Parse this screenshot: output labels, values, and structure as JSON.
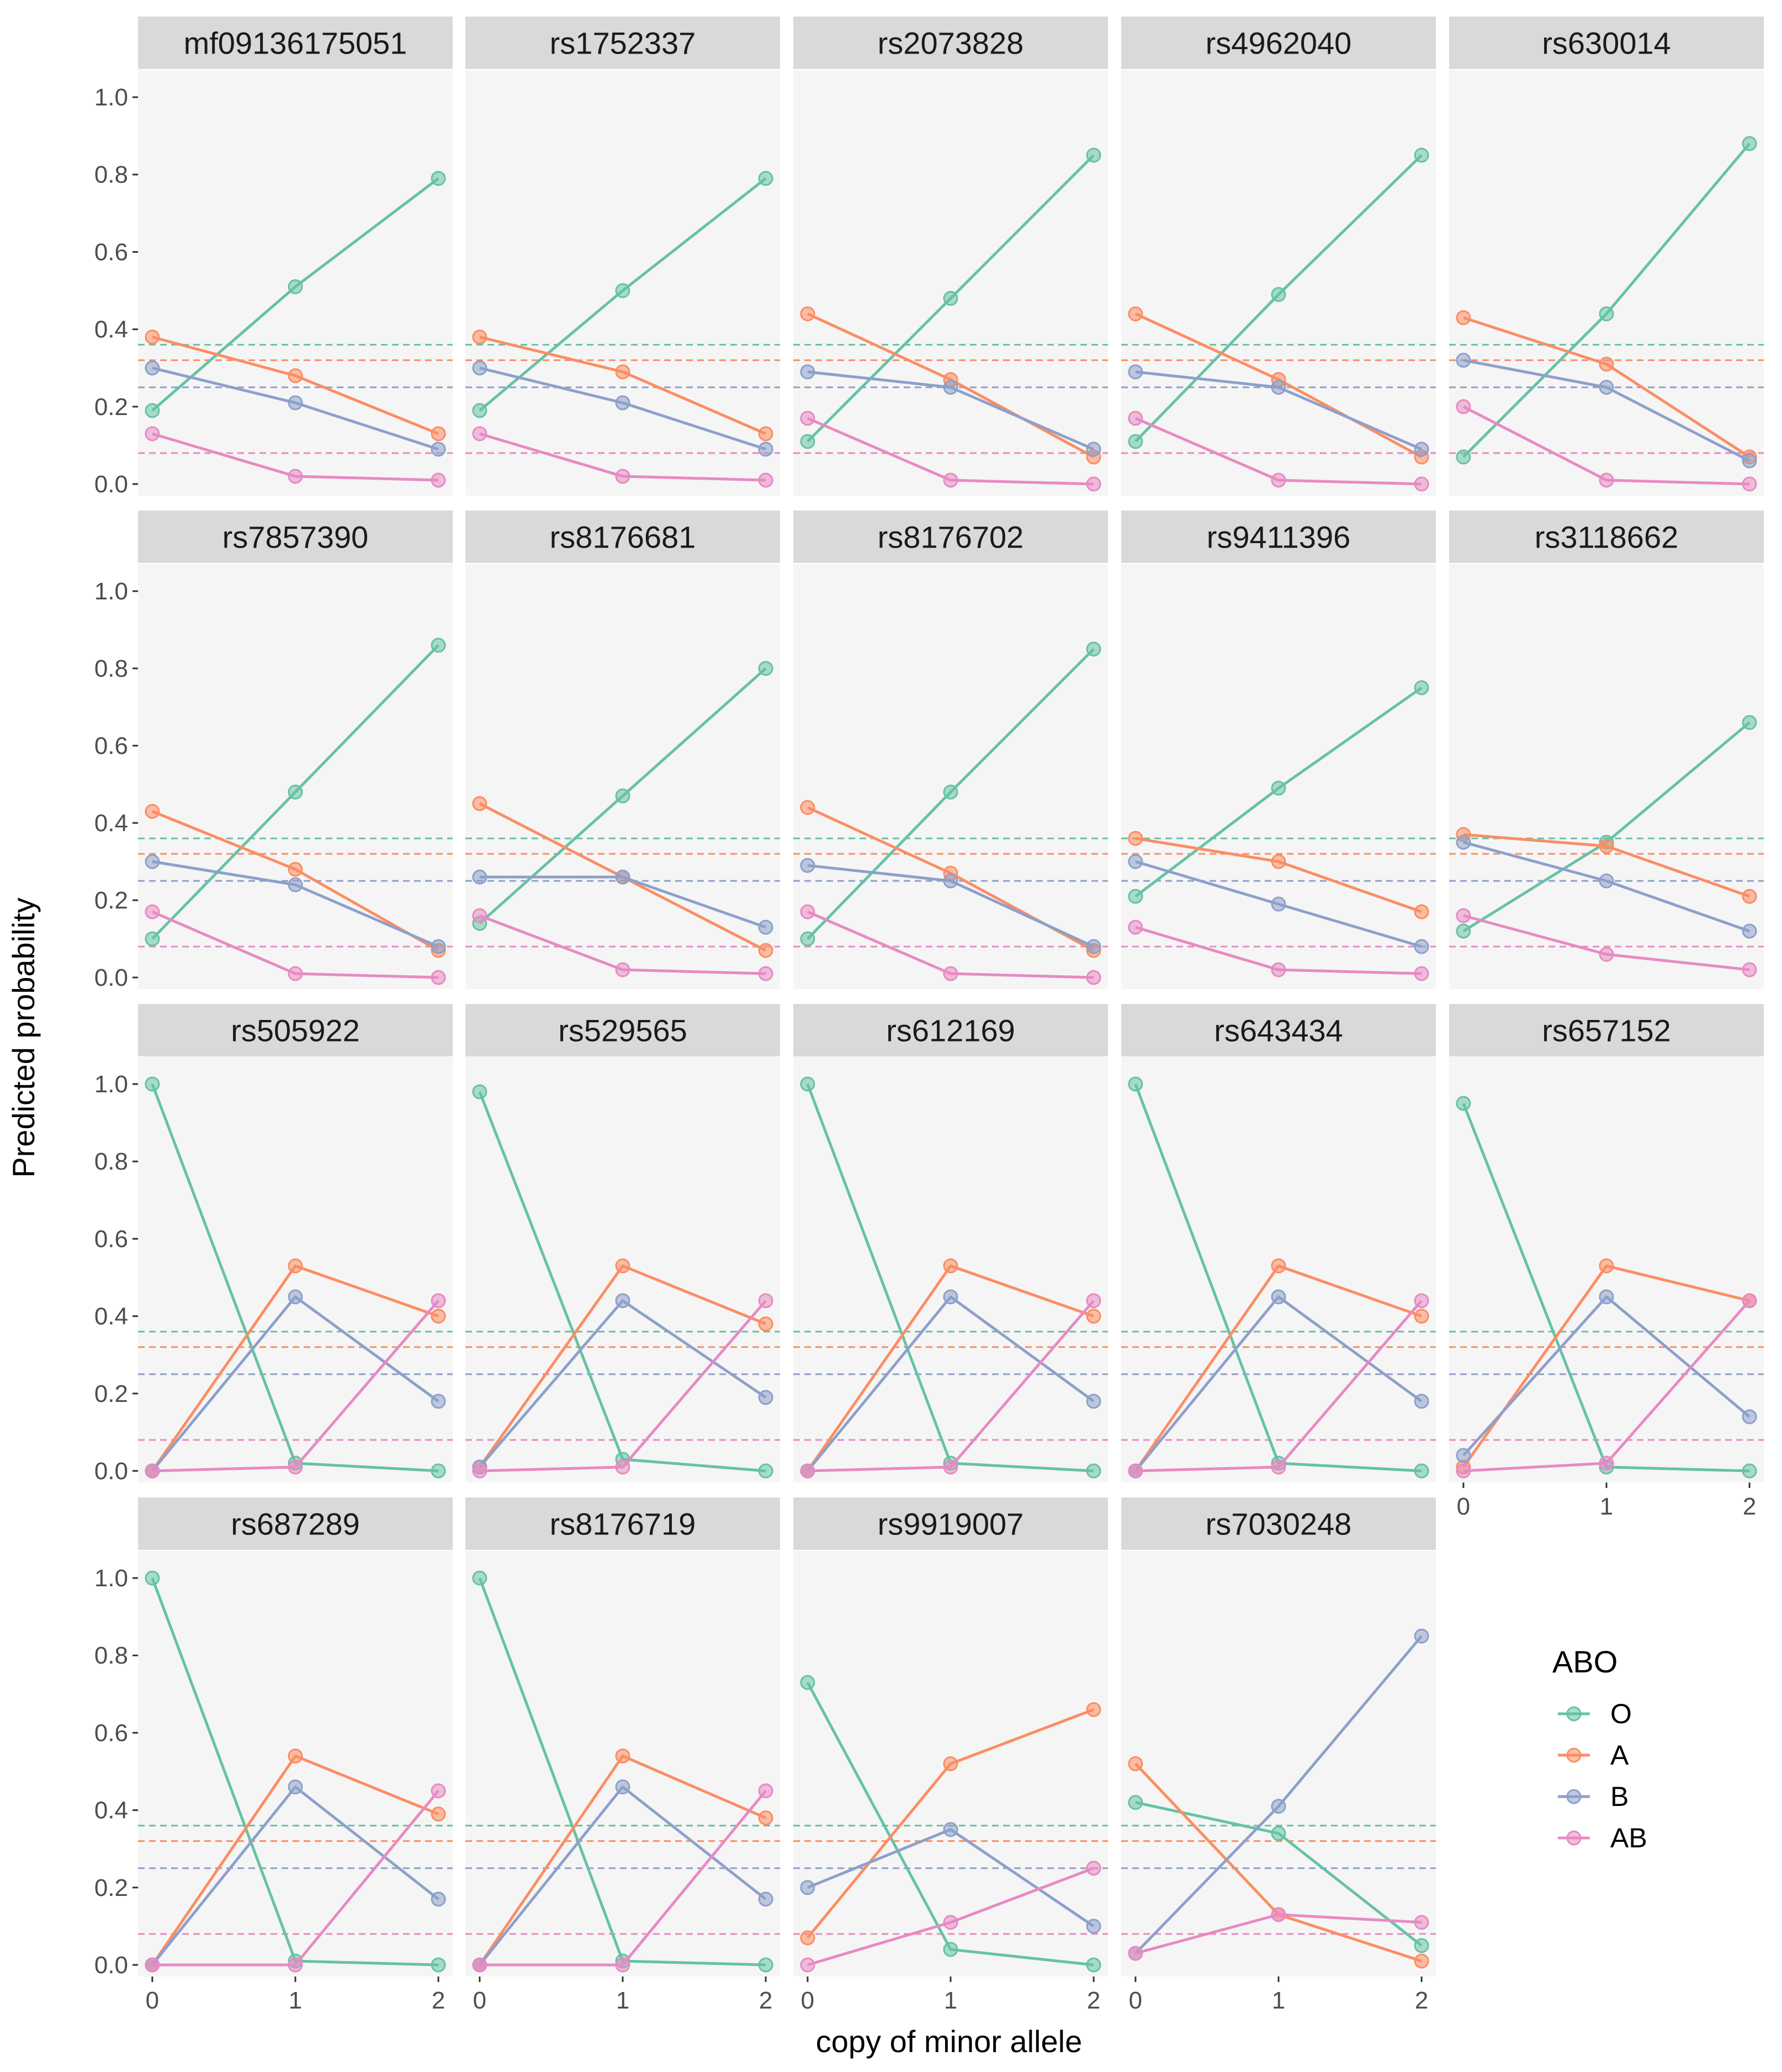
{
  "chart_data": {
    "type": "line",
    "xlabel": "copy of minor allele",
    "ylabel": "Predicted probability",
    "x": [
      0,
      1,
      2
    ],
    "x_ticks": [
      "0",
      "1",
      "2"
    ],
    "y_ticks": [
      "0.0",
      "0.2",
      "0.4",
      "0.6",
      "0.8",
      "1.0"
    ],
    "ylim": [
      -0.03,
      1.07
    ],
    "xlim": [
      -0.1,
      2.1
    ],
    "legend": {
      "title": "ABO",
      "entries": [
        "O",
        "A",
        "B",
        "AB"
      ],
      "position": "right"
    },
    "colors": {
      "O": "#66c2a5",
      "A": "#fc8d62",
      "B": "#8da0cb",
      "AB": "#e78ac3"
    },
    "reference_lines": {
      "O": 0.36,
      "A": 0.32,
      "B": 0.25,
      "AB": 0.08
    },
    "panels": [
      {
        "title": "mf09136175051",
        "series": {
          "O": [
            0.19,
            0.51,
            0.79
          ],
          "A": [
            0.38,
            0.28,
            0.13
          ],
          "B": [
            0.3,
            0.21,
            0.09
          ],
          "AB": [
            0.13,
            0.02,
            0.01
          ]
        }
      },
      {
        "title": "rs1752337",
        "series": {
          "O": [
            0.19,
            0.5,
            0.79
          ],
          "A": [
            0.38,
            0.29,
            0.13
          ],
          "B": [
            0.3,
            0.21,
            0.09
          ],
          "AB": [
            0.13,
            0.02,
            0.01
          ]
        }
      },
      {
        "title": "rs2073828",
        "series": {
          "O": [
            0.11,
            0.48,
            0.85
          ],
          "A": [
            0.44,
            0.27,
            0.07
          ],
          "B": [
            0.29,
            0.25,
            0.09
          ],
          "AB": [
            0.17,
            0.01,
            0.0
          ]
        }
      },
      {
        "title": "rs4962040",
        "series": {
          "O": [
            0.11,
            0.49,
            0.85
          ],
          "A": [
            0.44,
            0.27,
            0.07
          ],
          "B": [
            0.29,
            0.25,
            0.09
          ],
          "AB": [
            0.17,
            0.01,
            0.0
          ]
        }
      },
      {
        "title": "rs630014",
        "series": {
          "O": [
            0.07,
            0.44,
            0.88
          ],
          "A": [
            0.43,
            0.31,
            0.07
          ],
          "B": [
            0.32,
            0.25,
            0.06
          ],
          "AB": [
            0.2,
            0.01,
            0.0
          ]
        }
      },
      {
        "title": "rs7857390",
        "series": {
          "O": [
            0.1,
            0.48,
            0.86
          ],
          "A": [
            0.43,
            0.28,
            0.07
          ],
          "B": [
            0.3,
            0.24,
            0.08
          ],
          "AB": [
            0.17,
            0.01,
            0.0
          ]
        }
      },
      {
        "title": "rs8176681",
        "series": {
          "O": [
            0.14,
            0.47,
            0.8
          ],
          "A": [
            0.45,
            0.26,
            0.07
          ],
          "B": [
            0.26,
            0.26,
            0.13
          ],
          "AB": [
            0.16,
            0.02,
            0.01
          ]
        }
      },
      {
        "title": "rs8176702",
        "series": {
          "O": [
            0.1,
            0.48,
            0.85
          ],
          "A": [
            0.44,
            0.27,
            0.07
          ],
          "B": [
            0.29,
            0.25,
            0.08
          ],
          "AB": [
            0.17,
            0.01,
            0.0
          ]
        }
      },
      {
        "title": "rs9411396",
        "series": {
          "O": [
            0.21,
            0.49,
            0.75
          ],
          "A": [
            0.36,
            0.3,
            0.17
          ],
          "B": [
            0.3,
            0.19,
            0.08
          ],
          "AB": [
            0.13,
            0.02,
            0.01
          ]
        }
      },
      {
        "title": "rs3118662",
        "series": {
          "O": [
            0.12,
            0.35,
            0.66
          ],
          "A": [
            0.37,
            0.34,
            0.21
          ],
          "B": [
            0.35,
            0.25,
            0.12
          ],
          "AB": [
            0.16,
            0.06,
            0.02
          ]
        }
      },
      {
        "title": "rs505922",
        "series": {
          "O": [
            1.0,
            0.02,
            0.0
          ],
          "A": [
            0.0,
            0.53,
            0.4
          ],
          "B": [
            0.0,
            0.45,
            0.18
          ],
          "AB": [
            0.0,
            0.01,
            0.44
          ]
        }
      },
      {
        "title": "rs529565",
        "series": {
          "O": [
            0.98,
            0.03,
            0.0
          ],
          "A": [
            0.01,
            0.53,
            0.38
          ],
          "B": [
            0.01,
            0.44,
            0.19
          ],
          "AB": [
            0.0,
            0.01,
            0.44
          ]
        }
      },
      {
        "title": "rs612169",
        "series": {
          "O": [
            1.0,
            0.02,
            0.0
          ],
          "A": [
            0.0,
            0.53,
            0.4
          ],
          "B": [
            0.0,
            0.45,
            0.18
          ],
          "AB": [
            0.0,
            0.01,
            0.44
          ]
        }
      },
      {
        "title": "rs643434",
        "series": {
          "O": [
            1.0,
            0.02,
            0.0
          ],
          "A": [
            0.0,
            0.53,
            0.4
          ],
          "B": [
            0.0,
            0.45,
            0.18
          ],
          "AB": [
            0.0,
            0.01,
            0.44
          ]
        }
      },
      {
        "title": "rs657152",
        "series": {
          "O": [
            0.95,
            0.01,
            0.0
          ],
          "A": [
            0.01,
            0.53,
            0.44
          ],
          "B": [
            0.04,
            0.45,
            0.14
          ],
          "AB": [
            0.0,
            0.02,
            0.44
          ]
        }
      },
      {
        "title": "rs687289",
        "series": {
          "O": [
            1.0,
            0.01,
            0.0
          ],
          "A": [
            0.0,
            0.54,
            0.39
          ],
          "B": [
            0.0,
            0.46,
            0.17
          ],
          "AB": [
            0.0,
            0.0,
            0.45
          ]
        }
      },
      {
        "title": "rs8176719",
        "series": {
          "O": [
            1.0,
            0.01,
            0.0
          ],
          "A": [
            0.0,
            0.54,
            0.38
          ],
          "B": [
            0.0,
            0.46,
            0.17
          ],
          "AB": [
            0.0,
            0.0,
            0.45
          ]
        }
      },
      {
        "title": "rs9919007",
        "series": {
          "O": [
            0.73,
            0.04,
            0.0
          ],
          "A": [
            0.07,
            0.52,
            0.66
          ],
          "B": [
            0.2,
            0.35,
            0.1
          ],
          "AB": [
            0.0,
            0.11,
            0.25
          ]
        }
      },
      {
        "title": "rs7030248",
        "series": {
          "O": [
            0.42,
            0.34,
            0.05
          ],
          "A": [
            0.52,
            0.13,
            0.01
          ],
          "B": [
            0.03,
            0.41,
            0.85
          ],
          "AB": [
            0.03,
            0.13,
            0.11
          ]
        }
      }
    ]
  }
}
